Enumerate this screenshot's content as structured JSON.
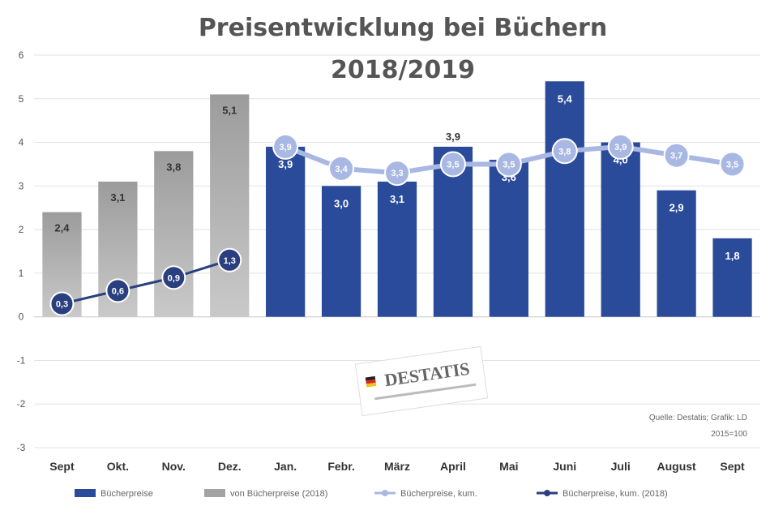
{
  "chart_data": {
    "type": "bar",
    "title": "Preisentwicklung bei Büchern",
    "subtitle": "2018/2019",
    "categories": [
      "Sept",
      "Okt.",
      "Nov.",
      "Dez.",
      "Jan.",
      "Febr.",
      "März",
      "April",
      "Mai",
      "Juni",
      "Juli",
      "August",
      "Sept"
    ],
    "ylim": [
      -3,
      6
    ],
    "yticks": [
      -3,
      -2,
      -1,
      0,
      1,
      2,
      3,
      4,
      5,
      6
    ],
    "series": [
      {
        "name": "Bücherpreise",
        "kind": "bar",
        "color": "#2a4a9a",
        "values": [
          null,
          null,
          null,
          null,
          3.9,
          3.0,
          3.1,
          3.9,
          3.6,
          5.4,
          4.0,
          2.9,
          1.8
        ],
        "labels": [
          "",
          "",
          "",
          "",
          "3,9",
          "3,0",
          "3,1",
          "3,9",
          "3,6",
          "5,4",
          "4,0",
          "2,9",
          "1,8"
        ]
      },
      {
        "name": "von Bücherpreise (2018)",
        "kind": "bar",
        "color": "#a3a3a3",
        "values": [
          2.4,
          3.1,
          3.8,
          5.1,
          null,
          null,
          null,
          null,
          null,
          null,
          null,
          null,
          null
        ],
        "labels": [
          "2,4",
          "3,1",
          "3,8",
          "5,1",
          "",
          "",
          "",
          "",
          "",
          "",
          "",
          "",
          ""
        ]
      },
      {
        "name": "Bücherpreise, kum.",
        "kind": "line",
        "color": "#a9b8e3",
        "values": [
          null,
          null,
          null,
          null,
          3.9,
          3.4,
          3.3,
          3.5,
          3.5,
          3.8,
          3.9,
          3.7,
          3.5
        ],
        "labels": [
          "",
          "",
          "",
          "",
          "3,9",
          "3,4",
          "3,3",
          "3,5",
          "3,5",
          "3,8",
          "3,9",
          "3,7",
          "3,5"
        ]
      },
      {
        "name": "Bücherpreise, kum. (2018)",
        "kind": "line",
        "color": "#2a3f7f",
        "values": [
          0.3,
          0.6,
          0.9,
          1.3,
          null,
          null,
          null,
          null,
          null,
          null,
          null,
          null,
          null
        ],
        "labels": [
          "0,3",
          "0,6",
          "0,9",
          "1,3",
          "",
          "",
          "",
          "",
          "",
          "",
          "",
          "",
          ""
        ]
      }
    ],
    "bar_top_labels": {
      "April": "3,9"
    },
    "legend_position": "bottom",
    "grid": true,
    "source_lines": [
      "Quelle: Destatis; Grafik: LD",
      "2015=100"
    ],
    "logo_text": "DESTATIS"
  }
}
